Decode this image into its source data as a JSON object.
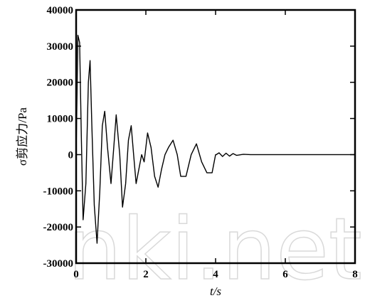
{
  "chart_data": {
    "type": "line",
    "title": "",
    "xlabel": "t/s",
    "ylabel": "σ剪应力/Pa",
    "xlim": [
      0,
      8
    ],
    "ylim": [
      -30000,
      40000
    ],
    "x_ticks": [
      "0",
      "2",
      "4",
      "6",
      "8"
    ],
    "y_ticks": [
      "40000",
      "30000",
      "20000",
      "10000",
      "0",
      "-10000",
      "-20000",
      "-30000"
    ],
    "grid": false,
    "watermark": "nki.net",
    "series": [
      {
        "name": "",
        "x": [
          0,
          0.05,
          0.1,
          0.15,
          0.2,
          0.28,
          0.35,
          0.4,
          0.45,
          0.52,
          0.6,
          0.68,
          0.75,
          0.82,
          0.9,
          1.0,
          1.08,
          1.15,
          1.25,
          1.33,
          1.42,
          1.5,
          1.58,
          1.65,
          1.72,
          1.8,
          1.88,
          1.95,
          2.05,
          2.15,
          2.25,
          2.35,
          2.45,
          2.55,
          2.65,
          2.78,
          2.9,
          3.0,
          3.15,
          3.3,
          3.45,
          3.6,
          3.75,
          3.9,
          4.0,
          4.02,
          4.1,
          4.2,
          4.3,
          4.4,
          4.5,
          4.6,
          4.8,
          5.0,
          6.0,
          7.0,
          8.0
        ],
        "y": [
          0,
          33000,
          31000,
          5000,
          -18000,
          -8000,
          20000,
          26000,
          8000,
          -14000,
          -24500,
          -10000,
          8000,
          12000,
          2000,
          -8000,
          2000,
          11000,
          0,
          -14500,
          -8000,
          4000,
          8000,
          0,
          -8000,
          -4000,
          0,
          -2000,
          6000,
          2000,
          -6000,
          -9000,
          -4000,
          0,
          2000,
          4000,
          0,
          -6000,
          -6000,
          0,
          3000,
          -2000,
          -5000,
          -5000,
          0,
          0,
          500,
          -500,
          400,
          -400,
          300,
          -200,
          100,
          0,
          0,
          0,
          0
        ]
      }
    ]
  }
}
